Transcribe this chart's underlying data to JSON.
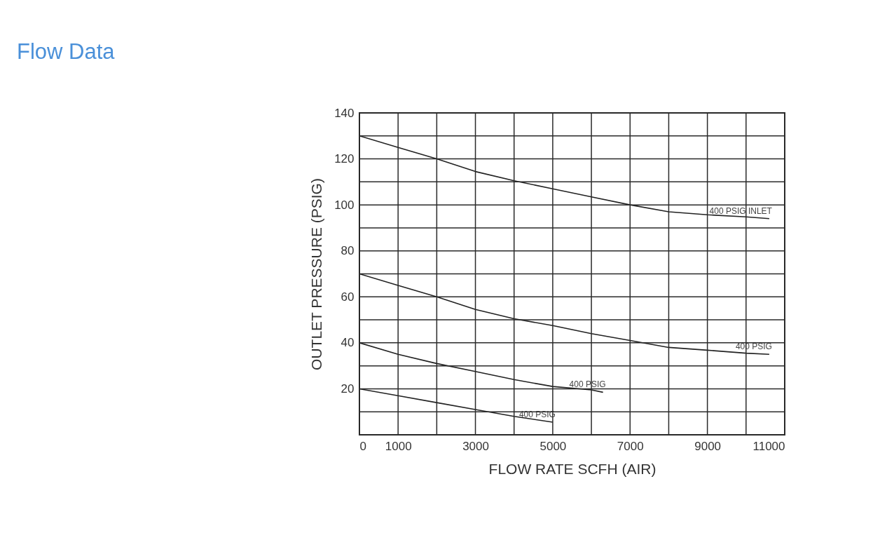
{
  "chart_data": {
    "type": "line",
    "title": "Flow Data",
    "xlabel": "FLOW  RATE  SCFH (AIR)",
    "ylabel": "OUTLET  PRESSURE (PSIG)",
    "x": [
      0,
      1000,
      2000,
      3000,
      4000,
      5000,
      6000,
      7000,
      8000,
      9000,
      10000,
      10600
    ],
    "series": [
      {
        "name": "400  PSIG  INLET",
        "color": "#222222",
        "values": [
          130,
          125,
          120,
          114.5,
          110.5,
          107,
          103.5,
          100,
          97,
          95.7,
          94.8,
          94
        ]
      },
      {
        "name": "400  PSIG",
        "color": "#222222",
        "values": [
          70,
          65,
          60,
          54.5,
          50.5,
          47.5,
          44,
          41,
          38,
          36.8,
          35.5,
          35
        ]
      },
      {
        "name": "400  PSIG",
        "color": "#222222",
        "x": [
          0,
          1000,
          2000,
          3000,
          4000,
          5000,
          6000,
          6300
        ],
        "values": [
          40,
          35,
          31,
          27.5,
          24,
          21,
          19.5,
          18.5
        ]
      },
      {
        "name": "400  PSIG",
        "color": "#222222",
        "x": [
          0,
          1000,
          2000,
          3000,
          4000,
          5000
        ],
        "values": [
          20,
          17,
          14,
          11,
          8,
          5.5
        ]
      }
    ],
    "xlim": [
      0,
      11000
    ],
    "ylim": [
      0,
      140
    ],
    "xticks": [
      0,
      1000,
      {
        "value": 2000,
        "label": null
      },
      3000,
      {
        "value": 4000,
        "label": null
      },
      5000,
      {
        "value": 6000,
        "label": null
      },
      7000,
      {
        "value": 8000,
        "label": null
      },
      9000,
      {
        "value": 10000,
        "label": null
      },
      11000
    ],
    "yticks": [
      {
        "value": 0,
        "label": null
      },
      {
        "value": 10,
        "label": null
      },
      20,
      {
        "value": 30,
        "label": null
      },
      40,
      {
        "value": 50,
        "label": null
      },
      60,
      {
        "value": 70,
        "label": null
      },
      80,
      {
        "value": 90,
        "label": null
      },
      100,
      {
        "value": 110,
        "label": null
      },
      120,
      {
        "value": 130,
        "label": null
      },
      140
    ],
    "grid": true,
    "legend": false,
    "marker": "none",
    "line_style": "solid"
  }
}
